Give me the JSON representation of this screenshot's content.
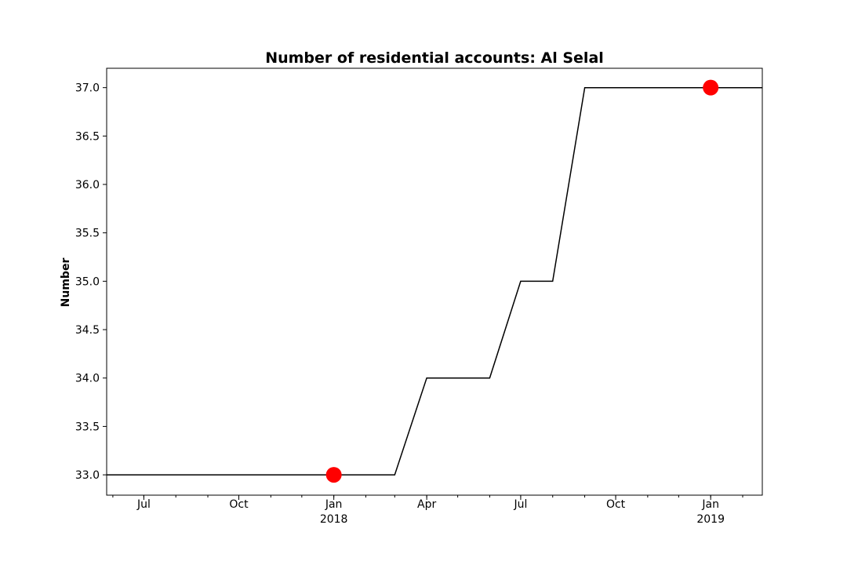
{
  "chart_data": {
    "type": "line",
    "title": "Number of residential accounts: Al Selal",
    "xlabel": "",
    "ylabel": "Number",
    "x_range": [
      "2017-05-26",
      "2019-02-20"
    ],
    "ylim": [
      32.79,
      37.2
    ],
    "grid": false,
    "legend": "none",
    "y_ticks": [
      "33.0",
      "33.5",
      "34.0",
      "34.5",
      "35.0",
      "35.5",
      "36.0",
      "36.5",
      "37.0"
    ],
    "x_ticks": [
      {
        "date": "2017-07-01",
        "label": "Jul",
        "year": ""
      },
      {
        "date": "2017-10-01",
        "label": "Oct",
        "year": ""
      },
      {
        "date": "2018-01-01",
        "label": "Jan",
        "year": "2018"
      },
      {
        "date": "2018-04-01",
        "label": "Apr",
        "year": ""
      },
      {
        "date": "2018-07-01",
        "label": "Jul",
        "year": ""
      },
      {
        "date": "2018-10-01",
        "label": "Oct",
        "year": ""
      },
      {
        "date": "2019-01-01",
        "label": "Jan",
        "year": "2019"
      }
    ],
    "series": [
      {
        "color": "#000000",
        "points": [
          {
            "x": "2017-05-26",
            "y": 33
          },
          {
            "x": "2018-03-01",
            "y": 33
          },
          {
            "x": "2018-04-01",
            "y": 34
          },
          {
            "x": "2018-06-01",
            "y": 34
          },
          {
            "x": "2018-07-01",
            "y": 35
          },
          {
            "x": "2018-08-01",
            "y": 35
          },
          {
            "x": "2018-09-01",
            "y": 37
          },
          {
            "x": "2019-02-20",
            "y": 37
          }
        ]
      }
    ],
    "highlighted_points": [
      {
        "x": "2018-01-01",
        "y": 33,
        "color": "#ff0000"
      },
      {
        "x": "2019-01-01",
        "y": 37,
        "color": "#ff0000"
      }
    ]
  }
}
